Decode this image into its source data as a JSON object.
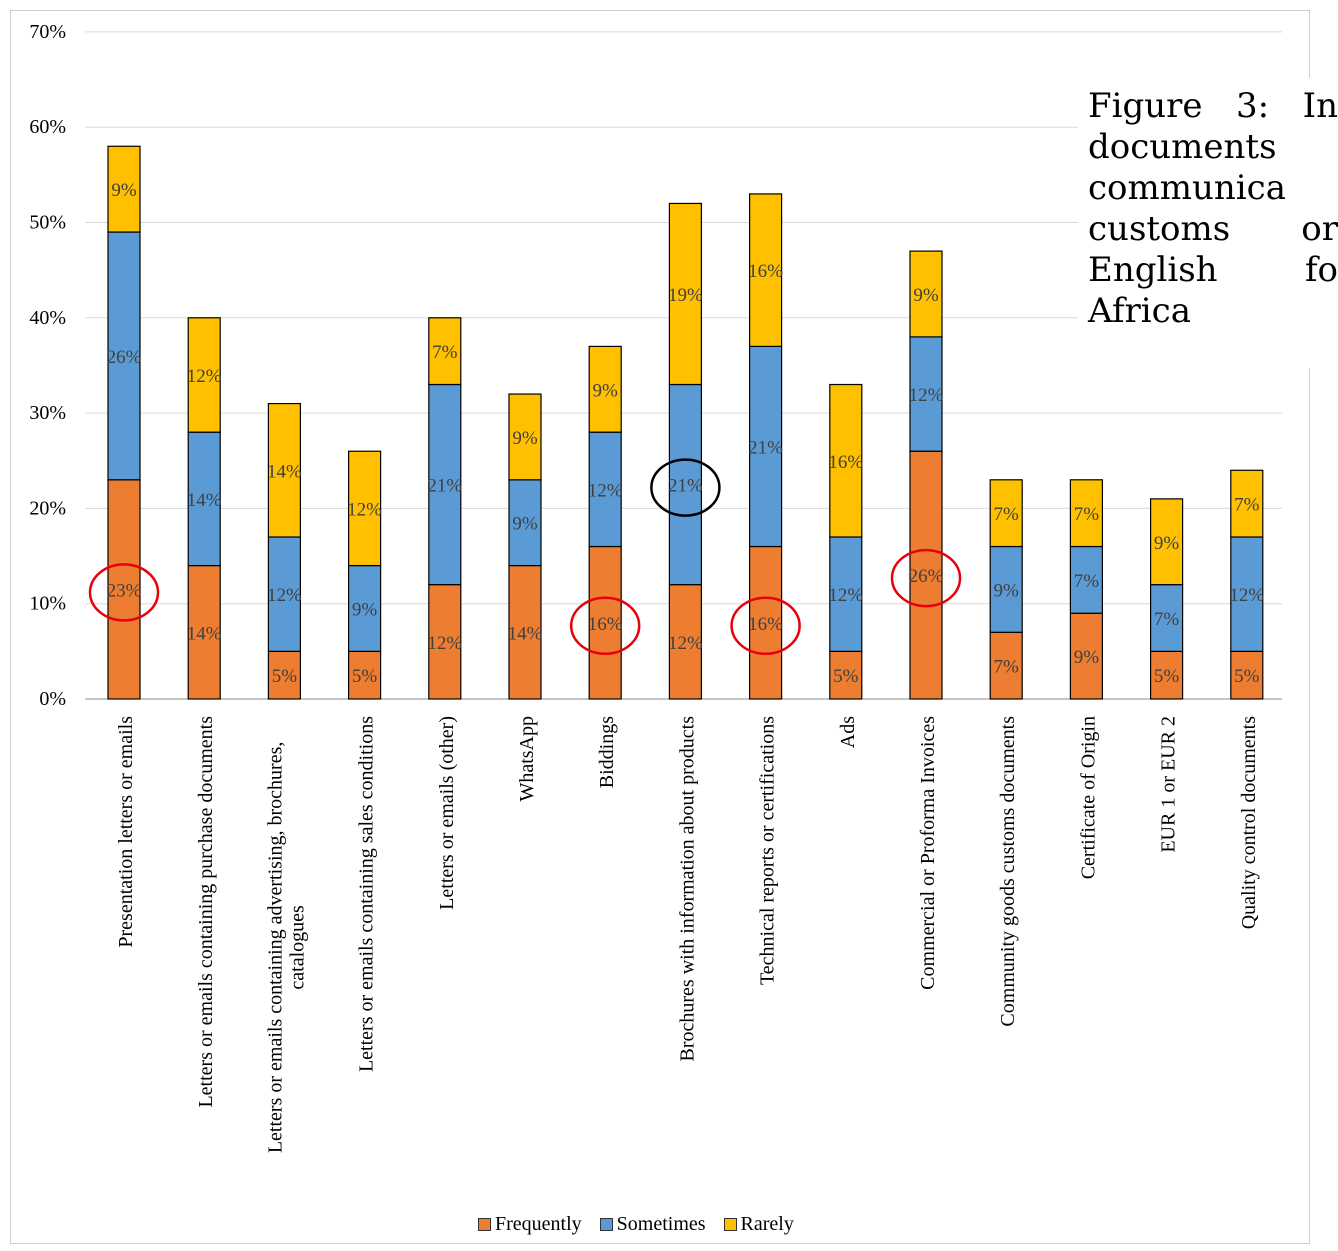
{
  "caption": {
    "text": "Figure 3: In documents communica customs or English fo Africa"
  },
  "legend": {
    "items": [
      {
        "label": "Frequently",
        "color": "#ED7D31"
      },
      {
        "label": "Sometimes",
        "color": "#5B9BD5"
      },
      {
        "label": "Rarely",
        "color": "#FFC000"
      }
    ]
  },
  "chart_data": {
    "type": "bar",
    "stacked": true,
    "categories": [
      "Presentation letters or emails",
      "Letters or emails containing purchase documents",
      "Letters or emails containing advertising, brochures, catalogues",
      "Letters or emails containing sales conditions",
      "Letters or emails (other)",
      "WhatsApp",
      "Biddings",
      "Brochures with information about products",
      "Technical reports or certifications",
      "Ads",
      "Commercial or Proforma Invoices",
      "Community goods customs documents",
      "Certificate of Origin",
      "EUR 1 or EUR 2",
      "Quality control documents"
    ],
    "series": [
      {
        "name": "Frequently",
        "color": "#ED7D31",
        "values": [
          23,
          14,
          5,
          5,
          12,
          14,
          16,
          12,
          16,
          5,
          26,
          7,
          9,
          5,
          5
        ]
      },
      {
        "name": "Sometimes",
        "color": "#5B9BD5",
        "values": [
          26,
          14,
          12,
          9,
          21,
          9,
          12,
          21,
          21,
          12,
          12,
          9,
          7,
          7,
          12
        ]
      },
      {
        "name": "Rarely",
        "color": "#FFC000",
        "values": [
          9,
          12,
          14,
          12,
          7,
          9,
          9,
          19,
          16,
          16,
          9,
          7,
          7,
          9,
          7
        ]
      }
    ],
    "value_suffix": "%",
    "ylim": [
      0,
      70
    ],
    "yticks": [
      "0%",
      "10%",
      "20%",
      "30%",
      "40%",
      "50%",
      "60%",
      "70%"
    ],
    "grid": true,
    "legend_position": "bottom",
    "xlabel": "",
    "ylabel": "",
    "annotations": [
      {
        "type": "circle",
        "color": "#E8000B",
        "category": 0,
        "series": "Frequently"
      },
      {
        "type": "circle",
        "color": "#E8000B",
        "category": 6,
        "series": "Frequently"
      },
      {
        "type": "circle",
        "color": "#E8000B",
        "category": 8,
        "series": "Frequently"
      },
      {
        "type": "circle",
        "color": "#E8000B",
        "category": 10,
        "series": "Frequently"
      },
      {
        "type": "circle",
        "color": "#000000",
        "category": 7,
        "series": "Sometimes"
      }
    ]
  }
}
